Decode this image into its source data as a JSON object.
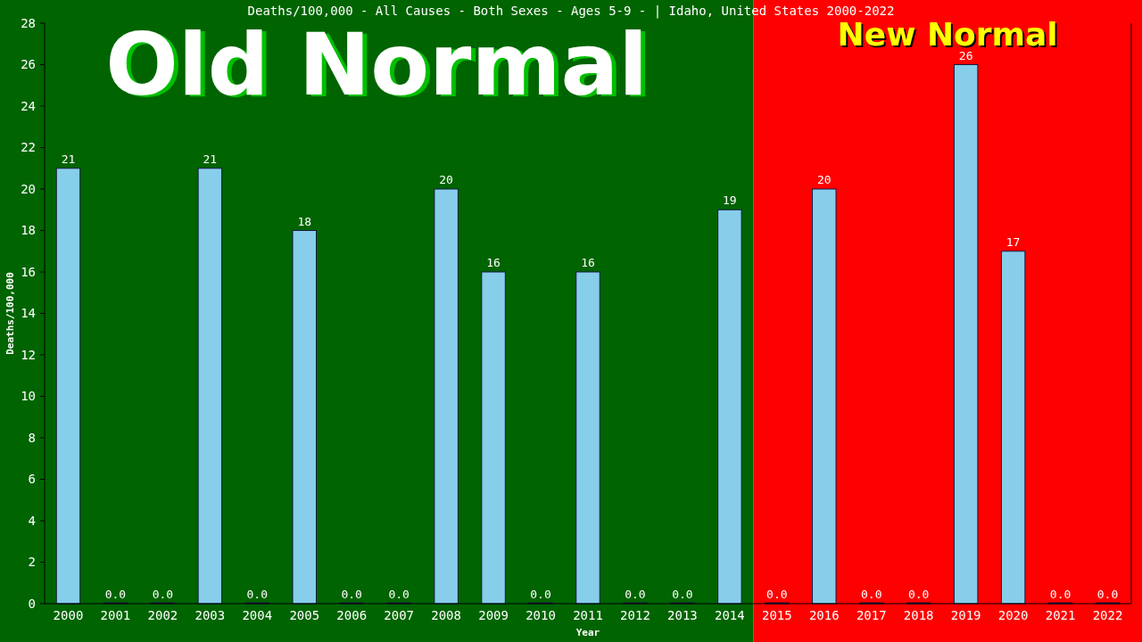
{
  "chart_data": {
    "type": "bar",
    "title": "Deaths/100,000 - All Causes - Both Sexes - Ages 5-9 -  | Idaho, United States 2000-2022",
    "xlabel": "Year",
    "ylabel": "Deaths/100,000",
    "categories": [
      "2000",
      "2001",
      "2002",
      "2003",
      "2004",
      "2005",
      "2006",
      "2007",
      "2008",
      "2009",
      "2010",
      "2011",
      "2012",
      "2013",
      "2014",
      "2015",
      "2016",
      "2017",
      "2018",
      "2019",
      "2020",
      "2021",
      "2022"
    ],
    "values": [
      21,
      0,
      0,
      21,
      0,
      18,
      0,
      0,
      20,
      16,
      0,
      16,
      0,
      0,
      19,
      0,
      20,
      0,
      0,
      26,
      17,
      0,
      0
    ],
    "value_labels": [
      "21",
      "0.0",
      "0.0",
      "21",
      "0.0",
      "18",
      "0.0",
      "0.0",
      "20",
      "16",
      "0.0",
      "16",
      "0.0",
      "0.0",
      "19",
      "0.0",
      "20",
      "0.0",
      "0.0",
      "26",
      "17",
      "0.0",
      "0.0"
    ],
    "color": "#87ceeb",
    "ylim": [
      0,
      28
    ],
    "yticks": [
      0,
      2,
      4,
      6,
      8,
      10,
      12,
      14,
      16,
      18,
      20,
      22,
      24,
      26,
      28
    ],
    "grid": false,
    "bands": [
      {
        "axis": "x",
        "from": "2000",
        "to": "2014",
        "label": "Old Normal",
        "color": "#006400"
      },
      {
        "axis": "x",
        "from": "2015",
        "to": "2022",
        "label": "New Normal",
        "color": "#ff0000"
      }
    ]
  }
}
